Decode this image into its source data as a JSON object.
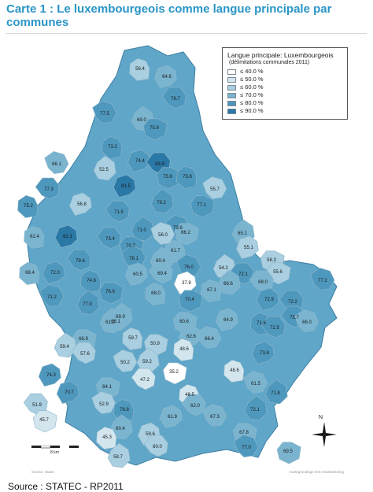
{
  "title": "Carte 1 : Le luxembourgeois comme langue principale par communes",
  "legend": {
    "title": "Langue principale: Luxembourgeois",
    "subtitle": "(délimitations communales 2011)",
    "classes": [
      {
        "label": "≤   40.0 %",
        "color": "#ffffff"
      },
      {
        "label": "≤   50.0 %",
        "color": "#d3e6ee"
      },
      {
        "label": "≤   60.0 %",
        "color": "#a9cfe0"
      },
      {
        "label": "≤   70.0 %",
        "color": "#7bb4cf"
      },
      {
        "label": "≤   80.0 %",
        "color": "#4f98bd"
      },
      {
        "label": "≤   90.0 %",
        "color": "#2a78a6"
      }
    ]
  },
  "communes": [
    {
      "v": "56.4"
    },
    {
      "v": "64.6"
    },
    {
      "v": "76.7"
    },
    {
      "v": "77.5"
    },
    {
      "v": "69.0"
    },
    {
      "v": "75.9"
    },
    {
      "v": "73.2"
    },
    {
      "v": "74.4"
    },
    {
      "v": "83.9"
    },
    {
      "v": "66.1"
    },
    {
      "v": "52.5"
    },
    {
      "v": "75.6"
    },
    {
      "v": "75.8"
    },
    {
      "v": "81.5"
    },
    {
      "v": "77.3"
    },
    {
      "v": "55.7"
    },
    {
      "v": "79.2"
    },
    {
      "v": "77.1"
    },
    {
      "v": "75.2"
    },
    {
      "v": "56.8"
    },
    {
      "v": "71.5"
    },
    {
      "v": "73.6"
    },
    {
      "v": "71.0"
    },
    {
      "v": "66.2"
    },
    {
      "v": "62.4"
    },
    {
      "v": "82.1"
    },
    {
      "v": "73.4"
    },
    {
      "v": "56.0"
    },
    {
      "v": "65.1"
    },
    {
      "v": "70.7"
    },
    {
      "v": "61.7"
    },
    {
      "v": "55.1"
    },
    {
      "v": "79.6"
    },
    {
      "v": "78.1"
    },
    {
      "v": "60.4"
    },
    {
      "v": "58.3"
    },
    {
      "v": "68.4"
    },
    {
      "v": "72.0"
    },
    {
      "v": "69.4"
    },
    {
      "v": "76.0"
    },
    {
      "v": "54.2"
    },
    {
      "v": "55.6"
    },
    {
      "v": "74.8"
    },
    {
      "v": "60.5"
    },
    {
      "v": "72.1"
    },
    {
      "v": "77.2"
    },
    {
      "v": "66.6"
    },
    {
      "v": "76.6"
    },
    {
      "v": "68.0"
    },
    {
      "v": "37.8"
    },
    {
      "v": "69.0"
    },
    {
      "v": "71.2"
    },
    {
      "v": "77.9"
    },
    {
      "v": "70.4"
    },
    {
      "v": "67.1"
    },
    {
      "v": "72.9"
    },
    {
      "v": "72.2"
    },
    {
      "v": "68.1"
    },
    {
      "v": "69.9"
    },
    {
      "v": "60.6"
    },
    {
      "v": "71.6"
    },
    {
      "v": "64.9"
    },
    {
      "v": "75.7"
    },
    {
      "v": "66.0"
    },
    {
      "v": "61.2"
    },
    {
      "v": "66.9"
    },
    {
      "v": "59.7"
    },
    {
      "v": "62.6"
    },
    {
      "v": "72.5"
    },
    {
      "v": "66.4"
    },
    {
      "v": "59.4"
    },
    {
      "v": "50.9"
    },
    {
      "v": "48.6"
    },
    {
      "v": "73.8"
    },
    {
      "v": "57.6"
    },
    {
      "v": "50.2"
    },
    {
      "v": "59.2"
    },
    {
      "v": "35.2"
    },
    {
      "v": "48.6"
    },
    {
      "v": "74.3"
    },
    {
      "v": "47.2"
    },
    {
      "v": "61.5"
    },
    {
      "v": "71.8"
    },
    {
      "v": "64.1"
    },
    {
      "v": "48.5"
    },
    {
      "v": "70.7"
    },
    {
      "v": "51.9"
    },
    {
      "v": "52.9"
    },
    {
      "v": "72.1"
    },
    {
      "v": "45.7"
    },
    {
      "v": "76.8"
    },
    {
      "v": "61.9"
    },
    {
      "v": "62.0"
    },
    {
      "v": "67.3"
    },
    {
      "v": "60.4"
    },
    {
      "v": "67.8"
    },
    {
      "v": "45.3"
    },
    {
      "v": "59.6"
    },
    {
      "v": "60.0"
    },
    {
      "v": "77.0"
    },
    {
      "v": "58.7"
    },
    {
      "v": "69.5"
    }
  ],
  "scale_label": "8 km",
  "compass_label": "N",
  "credit_left": "Source: Statec",
  "credit_right": "Kartegrundlage GIS OsoMarketing",
  "source": "Source : STATEC - RP2011"
}
